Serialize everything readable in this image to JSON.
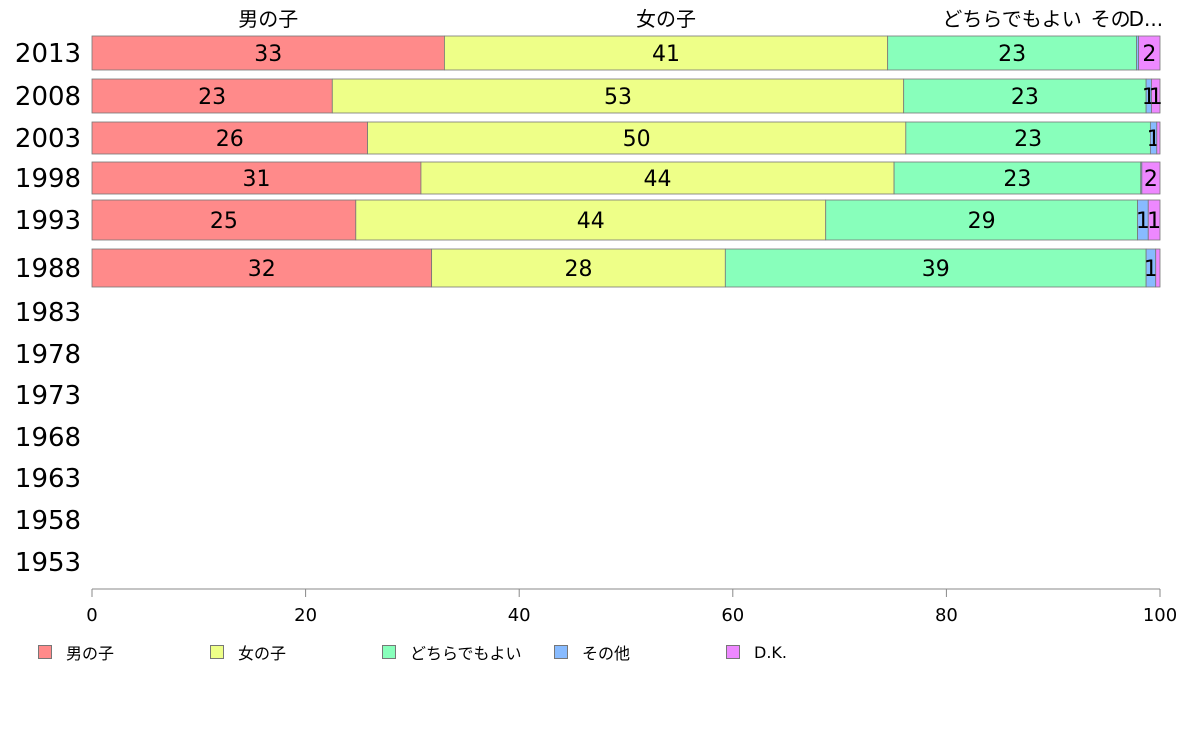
{
  "chart_data": {
    "type": "bar",
    "orientation": "horizontal",
    "stacked": true,
    "categories": [
      "2013",
      "2008",
      "2003",
      "1998",
      "1993",
      "1988",
      "1983",
      "1978",
      "1973",
      "1968",
      "1963",
      "1958",
      "1953"
    ],
    "series": [
      {
        "name": "男の子",
        "color": "#ff8a8a",
        "values": [
          33,
          22.5,
          25.8,
          30.8,
          24.7,
          31.8,
          null,
          null,
          null,
          null,
          null,
          null,
          null
        ],
        "labels": [
          "33",
          "23",
          "26",
          "31",
          "25",
          "32",
          "",
          "",
          "",
          "",
          "",
          "",
          ""
        ]
      },
      {
        "name": "女の子",
        "color": "#eeff88",
        "values": [
          41.5,
          53.5,
          50.4,
          44.3,
          44.0,
          27.5,
          null,
          null,
          null,
          null,
          null,
          null,
          null
        ],
        "labels": [
          "41",
          "53",
          "50",
          "44",
          "44",
          "28",
          "",
          "",
          "",
          "",
          "",
          "",
          ""
        ]
      },
      {
        "name": "どちらでもよい",
        "color": "#88ffbb",
        "values": [
          23.3,
          22.7,
          22.9,
          23.1,
          29.2,
          39.4,
          null,
          null,
          null,
          null,
          null,
          null,
          null
        ],
        "labels": [
          "23",
          "23",
          "23",
          "23",
          "29",
          "39",
          "",
          "",
          "",
          "",
          "",
          "",
          ""
        ]
      },
      {
        "name": "その他",
        "color": "#88bbff",
        "values": [
          0.2,
          0.5,
          0.6,
          0.1,
          1.0,
          0.9,
          null,
          null,
          null,
          null,
          null,
          null,
          null
        ],
        "labels": [
          "",
          "1",
          "1",
          "",
          "1",
          "1",
          "",
          "",
          "",
          "",
          "",
          "",
          ""
        ]
      },
      {
        "name": "D.K.",
        "color": "#ee88ff",
        "values": [
          2.0,
          0.8,
          0.3,
          1.7,
          1.1,
          0.4,
          null,
          null,
          null,
          null,
          null,
          null,
          null
        ],
        "labels": [
          "2",
          "1",
          "",
          "2",
          "1",
          "",
          "",
          "",
          "",
          "",
          "",
          "",
          ""
        ]
      }
    ],
    "top_labels": [
      "男の子",
      "女の子",
      "どちらでもよい",
      "その",
      "D..."
    ],
    "xlim": [
      0,
      100
    ],
    "xticks": [
      "0",
      "20",
      "40",
      "60",
      "80",
      "100"
    ],
    "grid": false,
    "legend_position": "bottom"
  }
}
